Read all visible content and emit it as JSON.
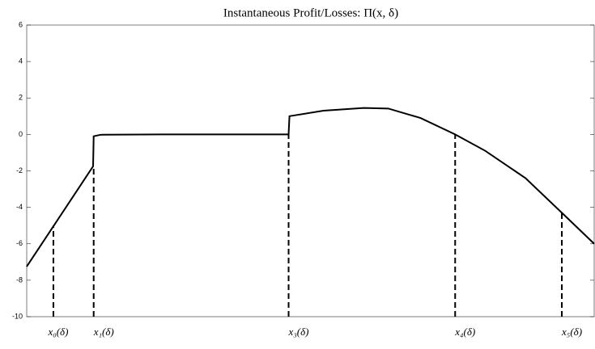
{
  "chart_data": {
    "type": "line",
    "title": "Instantaneous Profit/Losses: Π(x, δ)",
    "xlim": [
      0,
      1
    ],
    "ylim": [
      -10,
      6
    ],
    "yticks": [
      -10,
      -8,
      -6,
      -4,
      -2,
      0,
      2,
      4,
      6
    ],
    "series": [
      {
        "color": "#000000",
        "x": [
          0,
          0.117,
          0.118,
          0.13,
          0.238,
          0.38,
          0.4615,
          0.463,
          0.523,
          0.594,
          0.637,
          0.694,
          0.755,
          0.808,
          0.879,
          0.943,
          1.0
        ],
        "values": [
          -7.25,
          -1.75,
          -0.1,
          -0.02,
          0,
          0,
          0,
          1.0,
          1.3,
          1.45,
          1.42,
          0.9,
          0,
          -0.9,
          -2.4,
          -4.3,
          -6.0
        ]
      }
    ],
    "markers": [
      {
        "label": "x₀(δ)",
        "x": 0.047,
        "top": -5.0
      },
      {
        "label": "x₁(δ)",
        "x": 0.118,
        "top": -1.75
      },
      {
        "label": "x₃(δ)",
        "x": 0.4615,
        "top": 0
      },
      {
        "label": "x₄(δ)",
        "x": 0.755,
        "top": 0
      },
      {
        "label": "x₅(δ)",
        "x": 0.943,
        "top": -4.3
      }
    ]
  }
}
